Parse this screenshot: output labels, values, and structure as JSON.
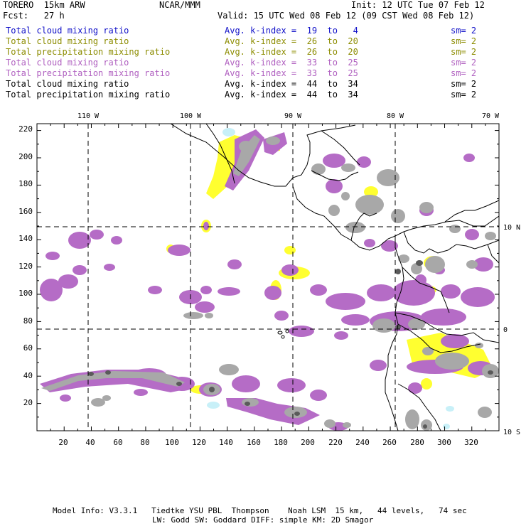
{
  "header": {
    "model": "TORERO  15km ARW",
    "org": "NCAR/MMM",
    "init": "Init: 12 UTC Tue 07 Feb 12",
    "fcst": "Fcst:   27 h",
    "valid": "Valid: 15 UTC Wed 08 Feb 12 (09 CST Wed 08 Feb 12)"
  },
  "colors": {
    "blue": "#1010c8",
    "olive": "#8c8c00",
    "purple": "#b060c0",
    "black": "#000000",
    "fill_purple": "#b56cc6",
    "fill_gray": "#a8a8a8",
    "fill_dark": "#5a5a5a",
    "fill_yellow": "#ffff30",
    "fill_cyan": "#c8f0f8"
  },
  "legend": [
    {
      "label": "Total cloud mixing ratio",
      "kindex": "Avg. k-index =  19  to   4",
      "sm": "sm= 2",
      "color": "#1010c8"
    },
    {
      "label": "Total cloud mixing ratio",
      "kindex": "Avg. k-index =  26  to  20",
      "sm": "sm= 2",
      "color": "#8c8c00"
    },
    {
      "label": "Total precipitation mixing ratio",
      "kindex": "Avg. k-index =  26  to  20",
      "sm": "sm= 2",
      "color": "#8c8c00"
    },
    {
      "label": "Total cloud mixing ratio",
      "kindex": "Avg. k-index =  33  to  25",
      "sm": "sm= 2",
      "color": "#b060c0"
    },
    {
      "label": "Total precipitation mixing ratio",
      "kindex": "Avg. k-index =  33  to  25",
      "sm": "sm= 2",
      "color": "#b060c0"
    },
    {
      "label": "Total cloud mixing ratio",
      "kindex": "Avg. k-index =  44  to  34",
      "sm": "sm= 2",
      "color": "#000000"
    },
    {
      "label": "Total precipitation mixing ratio",
      "kindex": "Avg. k-index =  44  to  34",
      "sm": "sm= 2",
      "color": "#000000"
    }
  ],
  "map": {
    "top_lon_labels": [
      "110 W",
      "100 W",
      "90 W",
      "80 W",
      "70 W"
    ],
    "right_lat_labels": [
      "10 N",
      "0",
      "10 S"
    ],
    "x_ticks": [
      "20",
      "40",
      "60",
      "80",
      "100",
      "120",
      "140",
      "160",
      "180",
      "200",
      "220",
      "240",
      "260",
      "280",
      "300",
      "320"
    ],
    "y_ticks": [
      "220",
      "200",
      "180",
      "160",
      "140",
      "120",
      "100",
      "80",
      "60",
      "40",
      "20"
    ],
    "x_range": [
      0,
      340
    ],
    "y_range": [
      0,
      225
    ]
  },
  "footer": {
    "line1": "Model Info: V3.3.1   Tiedtke YSU PBL  Thompson    Noah LSM  15 km,   44 levels,   74 sec",
    "line2": "LW: Godd SW: Goddard DIFF: simple KM: 2D Smagor"
  }
}
